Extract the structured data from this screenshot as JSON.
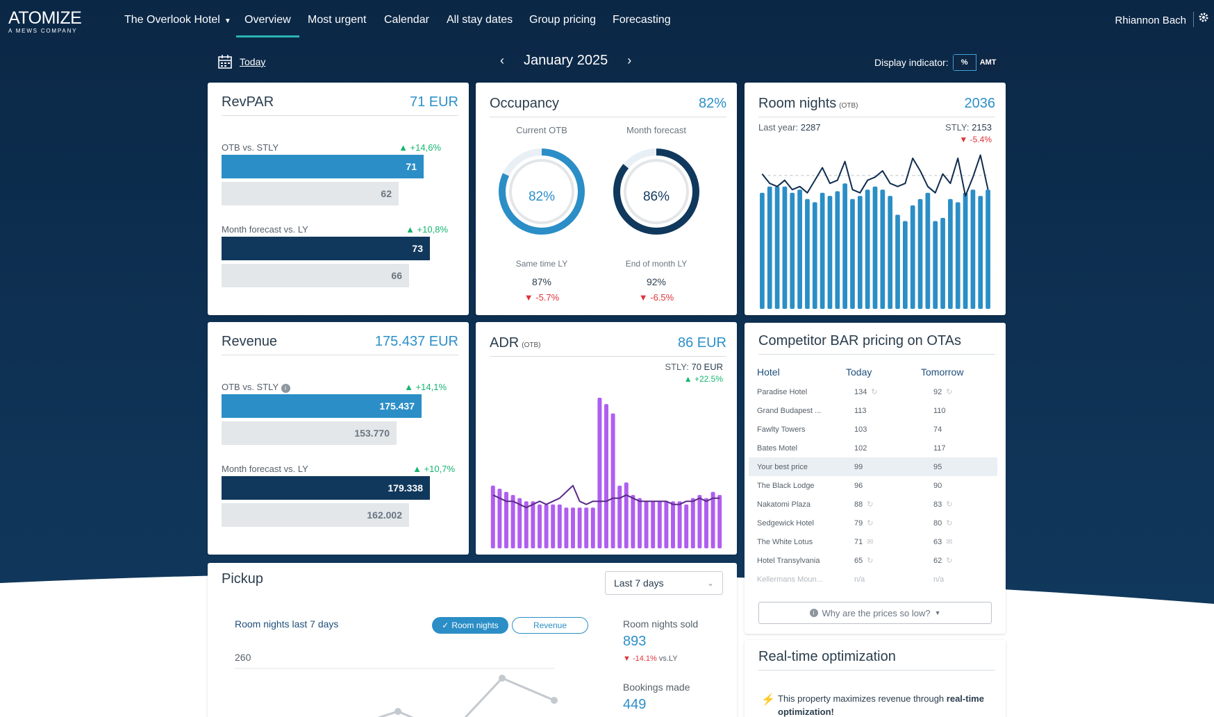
{
  "colors": {
    "navy": "#0b2746",
    "accent": "#2b8ec6",
    "dark_bar": "#10385c",
    "adr_bar": "#b05ef0",
    "positive": "#15b56f",
    "negative": "#e0323a"
  },
  "brand": {
    "name": "ATOMIZE",
    "sub": "A MEWS COMPANY"
  },
  "nav": {
    "hotel": "The Overlook Hotel",
    "items": [
      "Overview",
      "Most urgent",
      "Calendar",
      "All stay dates",
      "Group pricing",
      "Forecasting"
    ],
    "user": "Rhiannon Bach",
    "gear_icon": "gear-icon"
  },
  "subbar": {
    "today": "Today",
    "month": "January 2025",
    "prev": "‹",
    "next": "›",
    "display_label": "Display indicator:",
    "toggle_pct": "%",
    "toggle_amt": "AMT"
  },
  "revpar": {
    "title": "RevPAR",
    "value": "71 EUR",
    "otb_label": "OTB vs. STLY",
    "otb_delta": "+14,6%",
    "otb": "71",
    "stly": "62",
    "fc_label": "Month forecast vs. LY",
    "fc_delta": "+10,8%",
    "fc": "73",
    "ly": "66",
    "otb_fill": 0.97,
    "stly_fill": 0.85,
    "fc_fill": 1.0,
    "ly_fill": 0.9
  },
  "occupancy": {
    "title": "Occupancy",
    "value": "82%",
    "current_label": "Current OTB",
    "forecast_label": "Month forecast",
    "current": "82%",
    "forecast": "86%",
    "current_pct": 82,
    "forecast_pct": 86,
    "same_time_label": "Same time LY",
    "same_time": "87%",
    "same_time_delta": "-5.7%",
    "eom_label": "End of month LY",
    "eom": "92%",
    "eom_delta": "-6.5%"
  },
  "room_nights": {
    "title": "Room nights",
    "tag": "(OTB)",
    "value": "2036",
    "last_year_label": "Last year:",
    "last_year": "2287",
    "stly_label": "STLY:",
    "stly": "2153",
    "delta": "-5.4%"
  },
  "revenue": {
    "title": "Revenue",
    "value": "175.437 EUR",
    "otb_label": "OTB vs. STLY",
    "otb_delta": "+14,1%",
    "otb": "175.437",
    "stly": "153.770",
    "fc_label": "Month forecast vs. LY",
    "fc_delta": "+10,7%",
    "fc": "179.338",
    "ly": "162.002",
    "otb_fill": 0.96,
    "stly_fill": 0.84,
    "fc_fill": 1.0,
    "ly_fill": 0.9
  },
  "adr": {
    "title": "ADR",
    "tag": "(OTB)",
    "value": "86 EUR",
    "stly_label": "STLY:",
    "stly": "70 EUR",
    "delta": "+22.5%"
  },
  "competitors": {
    "title": "Competitor BAR pricing on OTAs",
    "headers": [
      "Hotel",
      "Today",
      "Tomorrow"
    ],
    "rows": [
      {
        "hotel": "Paradise Hotel",
        "today": "134",
        "tomorrow": "92"
      },
      {
        "hotel": "Grand Budapest ...",
        "today": "113",
        "tomorrow": "110"
      },
      {
        "hotel": "Fawlty Towers",
        "today": "103",
        "tomorrow": "74"
      },
      {
        "hotel": "Bates Motel",
        "today": "102",
        "tomorrow": "117"
      },
      {
        "hotel": "Your best price",
        "today": "99",
        "tomorrow": "95"
      },
      {
        "hotel": "The Black Lodge",
        "today": "96",
        "tomorrow": "90"
      },
      {
        "hotel": "Nakatomi Plaza",
        "today": "88",
        "tomorrow": "83"
      },
      {
        "hotel": "Sedgewick Hotel",
        "today": "79",
        "tomorrow": "80"
      },
      {
        "hotel": "The White Lotus",
        "today": "71",
        "tomorrow": "63"
      },
      {
        "hotel": "Hotel Transylvania",
        "today": "65",
        "tomorrow": "62"
      },
      {
        "hotel": "Kellermans Moun...",
        "today": "n/a",
        "tomorrow": "n/a"
      }
    ],
    "why_button": "Why are the prices so low?"
  },
  "pickup": {
    "title": "Pickup",
    "range": "Last 7 days",
    "chart_title": "Room nights last 7 days",
    "pill_on": "Room nights",
    "pill_off": "Revenue",
    "y_tick": "260",
    "sold_label": "Room nights sold",
    "sold": "893",
    "sold_delta": "-14.1%",
    "sold_vs": "vs.LY",
    "bookings_label": "Bookings made",
    "bookings": "449"
  },
  "rto": {
    "title": "Real-time optimization",
    "text_a": "This property maximizes revenue through ",
    "text_b": "real-time optimization!"
  },
  "chart_data": [
    {
      "type": "bar",
      "title": "Room nights",
      "values": [
        74,
        78,
        78,
        78,
        74,
        76,
        70,
        68,
        74,
        72,
        75,
        80,
        70,
        72,
        76,
        78,
        76,
        72,
        60,
        56,
        66,
        70,
        74,
        56,
        58,
        70,
        68,
        74,
        76,
        72,
        76
      ],
      "line": [
        86,
        80,
        78,
        82,
        76,
        78,
        74,
        82,
        90,
        80,
        82,
        94,
        76,
        74,
        82,
        84,
        88,
        80,
        78,
        80,
        96,
        88,
        78,
        74,
        86,
        80,
        96,
        72,
        84,
        98,
        76
      ],
      "ylim": [
        0,
        100
      ]
    },
    {
      "type": "bar",
      "title": "ADR",
      "values": [
        40,
        38,
        36,
        34,
        32,
        30,
        30,
        28,
        28,
        28,
        28,
        26,
        26,
        26,
        26,
        26,
        96,
        92,
        86,
        40,
        42,
        34,
        32,
        30,
        30,
        30,
        30,
        30,
        30,
        28,
        32,
        34,
        32,
        36,
        34
      ],
      "line": [
        34,
        32,
        30,
        30,
        28,
        26,
        28,
        30,
        28,
        30,
        32,
        36,
        40,
        30,
        28,
        30,
        30,
        30,
        32,
        32,
        34,
        32,
        30,
        30,
        30,
        30,
        30,
        28,
        28,
        30,
        30,
        32,
        30,
        32,
        32
      ],
      "ylim": [
        0,
        100
      ]
    },
    {
      "type": "line",
      "title": "Room nights last 7 days",
      "values": [
        90,
        100,
        80,
        140,
        60,
        260,
        180
      ],
      "ylim": [
        0,
        300
      ]
    }
  ]
}
